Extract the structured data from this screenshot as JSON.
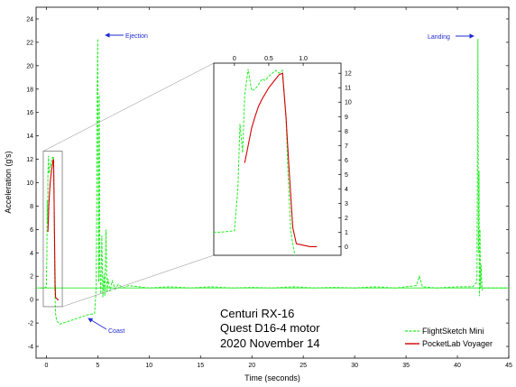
{
  "chart_data": {
    "type": "line",
    "title_lines": [
      "Centuri RX-16",
      "Quest D16-4 motor",
      "2020 November 14"
    ],
    "xlabel": "Time (seconds)",
    "ylabel": "Acceleration (g's)",
    "xlim": [
      -1,
      45
    ],
    "ylim": [
      -5,
      25
    ],
    "xticks": [
      0,
      5,
      10,
      15,
      20,
      25,
      30,
      35,
      40,
      45
    ],
    "yticks": [
      -4,
      -2,
      0,
      2,
      4,
      6,
      8,
      10,
      12,
      14,
      16,
      18,
      20,
      22,
      24
    ],
    "grid": false,
    "legend_position": "bottom-right",
    "legend": [
      "FlightSketch Mini",
      "PocketLab Voyager"
    ],
    "colors": {
      "flightsketch": "#22ee22",
      "pocketlab": "#d40000",
      "annotation": "#1f2bd6",
      "reference": "#22ee22"
    },
    "reference_line_y": 1.0,
    "annotations": [
      {
        "text": "Ejection",
        "x": 5.0,
        "y": 22.3
      },
      {
        "text": "Landing",
        "x": 42.0,
        "y": 22.3
      },
      {
        "text": "Coast",
        "x": 3.3,
        "y": -2.0
      }
    ],
    "series": [
      {
        "name": "FlightSketch Mini",
        "style": "dashed",
        "x": [
          -0.6,
          -0.2,
          0.0,
          0.05,
          0.08,
          0.12,
          0.15,
          0.2,
          0.25,
          0.3,
          0.35,
          0.4,
          0.45,
          0.5,
          0.55,
          0.6,
          0.65,
          0.7,
          0.75,
          0.78,
          0.82,
          0.9,
          1.0,
          1.3,
          2.0,
          3.0,
          4.0,
          4.7,
          4.85,
          4.9,
          4.95,
          5.0,
          5.05,
          5.1,
          5.15,
          5.2,
          5.3,
          5.4,
          5.5,
          5.6,
          5.7,
          5.8,
          5.9,
          6.0,
          6.2,
          6.4,
          6.7,
          7.0,
          7.5,
          8.0,
          9.0,
          10.0,
          12.0,
          14.0,
          16.0,
          18.0,
          20.0,
          22.0,
          24.0,
          26.0,
          28.0,
          30.0,
          32.0,
          34.0,
          36.0,
          36.3,
          36.6,
          38.0,
          40.0,
          41.5,
          41.9,
          42.0,
          42.05,
          42.1,
          42.15,
          42.2,
          42.25,
          42.3,
          42.4,
          42.5,
          43.0,
          44.0,
          45.0
        ],
        "y": [
          1.0,
          1.0,
          1.1,
          4.0,
          8.5,
          6.5,
          10.5,
          12.3,
          10.8,
          10.9,
          11.2,
          11.6,
          11.5,
          11.8,
          12.0,
          12.2,
          12.0,
          12.2,
          9.0,
          5.0,
          1.0,
          -1.2,
          -1.8,
          -2.1,
          -1.9,
          -1.6,
          -1.3,
          -1.2,
          1.0,
          8.0,
          18.0,
          22.3,
          12.0,
          1.5,
          17.5,
          3.0,
          0.5,
          5.5,
          0.2,
          2.2,
          0.3,
          6.0,
          0.6,
          1.8,
          0.7,
          1.6,
          0.9,
          1.3,
          1.0,
          1.2,
          1.1,
          1.0,
          1.1,
          1.0,
          1.1,
          1.0,
          1.05,
          1.0,
          1.1,
          1.0,
          1.05,
          1.0,
          1.1,
          1.0,
          1.2,
          2.0,
          1.1,
          1.0,
          1.1,
          1.1,
          1.5,
          22.3,
          4.0,
          11.0,
          0.3,
          6.0,
          1.0,
          3.0,
          0.8,
          1.0,
          1.0,
          1.0,
          1.0
        ]
      },
      {
        "name": "PocketLab Voyager",
        "style": "solid",
        "x": [
          0.15,
          0.2,
          0.25,
          0.3,
          0.35,
          0.4,
          0.45,
          0.5,
          0.55,
          0.6,
          0.65,
          0.7,
          0.75,
          0.8,
          0.85,
          0.9,
          1.0,
          1.1,
          1.2
        ],
        "y": [
          5.8,
          7.0,
          8.2,
          9.0,
          9.7,
          10.2,
          10.6,
          11.0,
          11.3,
          11.6,
          11.9,
          12.0,
          9.0,
          5.0,
          1.3,
          0.2,
          0.1,
          0.0,
          0.0
        ]
      }
    ],
    "inset": {
      "xlim": [
        -0.3,
        1.55
      ],
      "ylim": [
        -0.6,
        12.7
      ],
      "xticks": [
        0,
        0.5,
        1.0
      ],
      "xticklabels": [
        "0",
        "0.5",
        "1.0"
      ],
      "yticks": [
        0,
        1,
        2,
        3,
        4,
        5,
        6,
        7,
        8,
        9,
        10,
        11,
        12
      ]
    }
  }
}
